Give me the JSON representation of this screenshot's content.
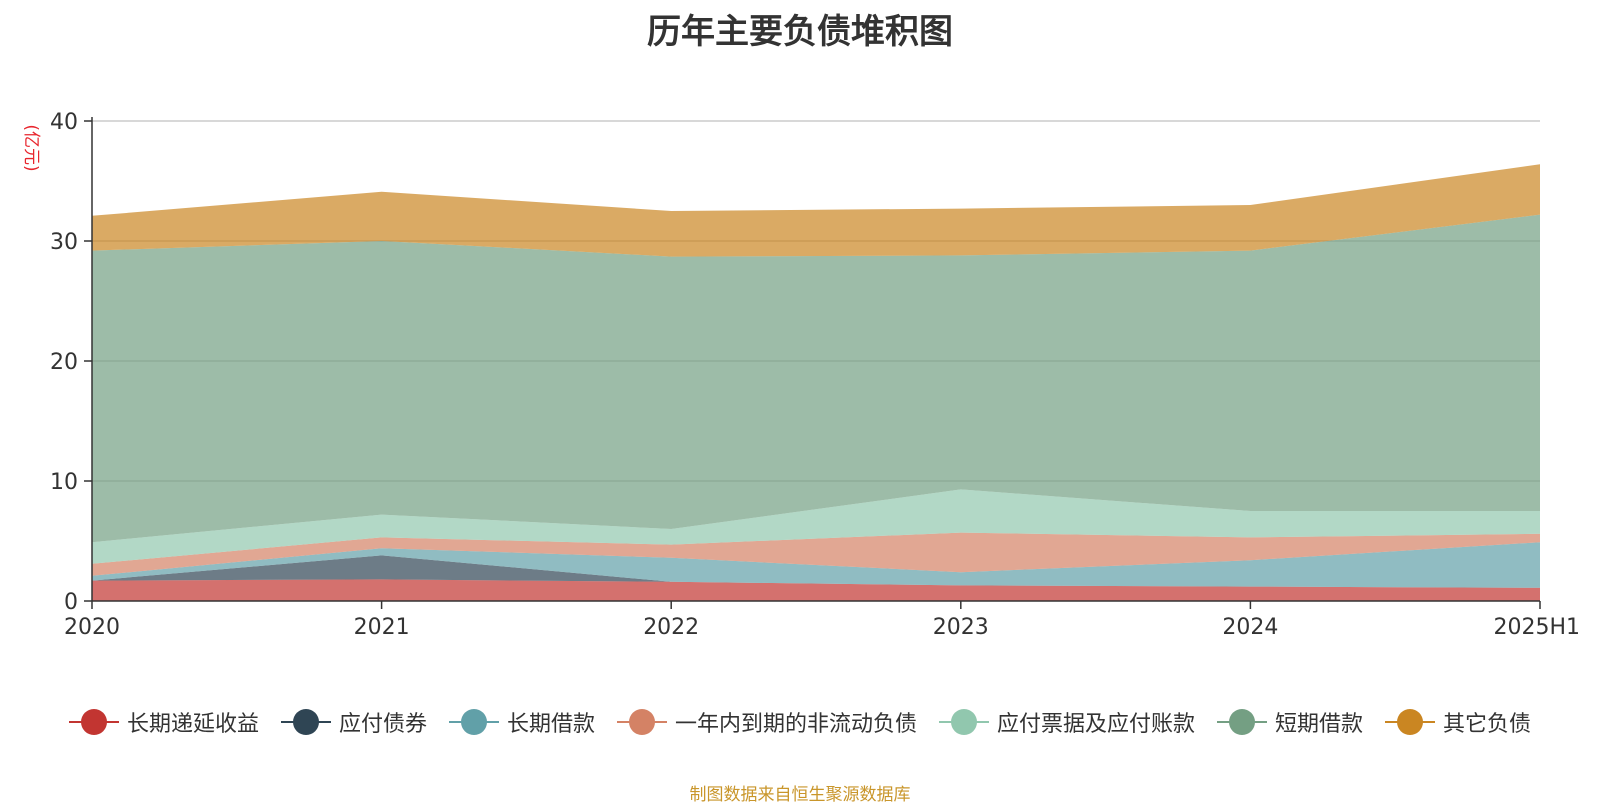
{
  "chart_data": {
    "type": "area",
    "stacked": true,
    "title": "历年主要负债堆积图",
    "ylabel": "(亿元)",
    "xlabel": "",
    "categories": [
      "2020",
      "2021",
      "2022",
      "2023",
      "2024",
      "2025H1"
    ],
    "ylim": [
      0,
      40
    ],
    "yticks": [
      0,
      10,
      20,
      30,
      40
    ],
    "grid": true,
    "legend_position": "bottom",
    "series": [
      {
        "name": "长期递延收益",
        "color": "#c23531",
        "values": [
          1.7,
          1.8,
          1.6,
          1.3,
          1.2,
          1.1
        ]
      },
      {
        "name": "应付债券",
        "color": "#2f4554",
        "values": [
          0.0,
          2.0,
          0.0,
          0.0,
          0.0,
          0.0
        ]
      },
      {
        "name": "长期借款",
        "color": "#61a0a8",
        "values": [
          0.4,
          0.6,
          2.0,
          1.1,
          2.2,
          3.8
        ]
      },
      {
        "name": "一年内到期的非流动负债",
        "color": "#d48265",
        "values": [
          1.0,
          0.9,
          1.1,
          3.3,
          1.9,
          0.7
        ]
      },
      {
        "name": "应付票据及应付账款",
        "color": "#91c7ae",
        "values": [
          1.8,
          1.9,
          1.3,
          3.6,
          2.2,
          1.9
        ]
      },
      {
        "name": "短期借款",
        "color": "#749f83",
        "values": [
          24.3,
          22.8,
          22.7,
          19.5,
          21.7,
          24.7
        ]
      },
      {
        "name": "其它负债",
        "color": "#ca8622",
        "values": [
          2.9,
          4.1,
          3.8,
          3.9,
          3.8,
          4.2
        ]
      }
    ]
  },
  "source_note": "制图数据来自恒生聚源数据库"
}
